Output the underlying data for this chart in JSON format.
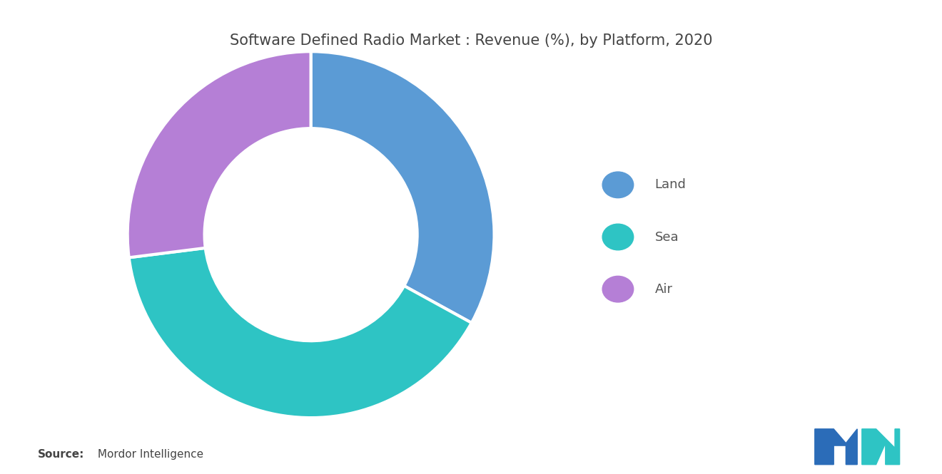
{
  "title": "Software Defined Radio Market : Revenue (%), by Platform, 2020",
  "labels": [
    "Land",
    "Sea",
    "Air"
  ],
  "values": [
    33,
    40,
    27
  ],
  "colors": [
    "#5B9BD5",
    "#2EC4C4",
    "#B57FD6"
  ],
  "legend_labels": [
    "Land",
    "Sea",
    "Air"
  ],
  "source_bold": "Source:",
  "source_text": " Mordor Intelligence",
  "background_color": "#ffffff",
  "title_fontsize": 15,
  "start_angle": 90,
  "donut_width": 0.42,
  "edge_color": "white",
  "edge_linewidth": 3.0
}
